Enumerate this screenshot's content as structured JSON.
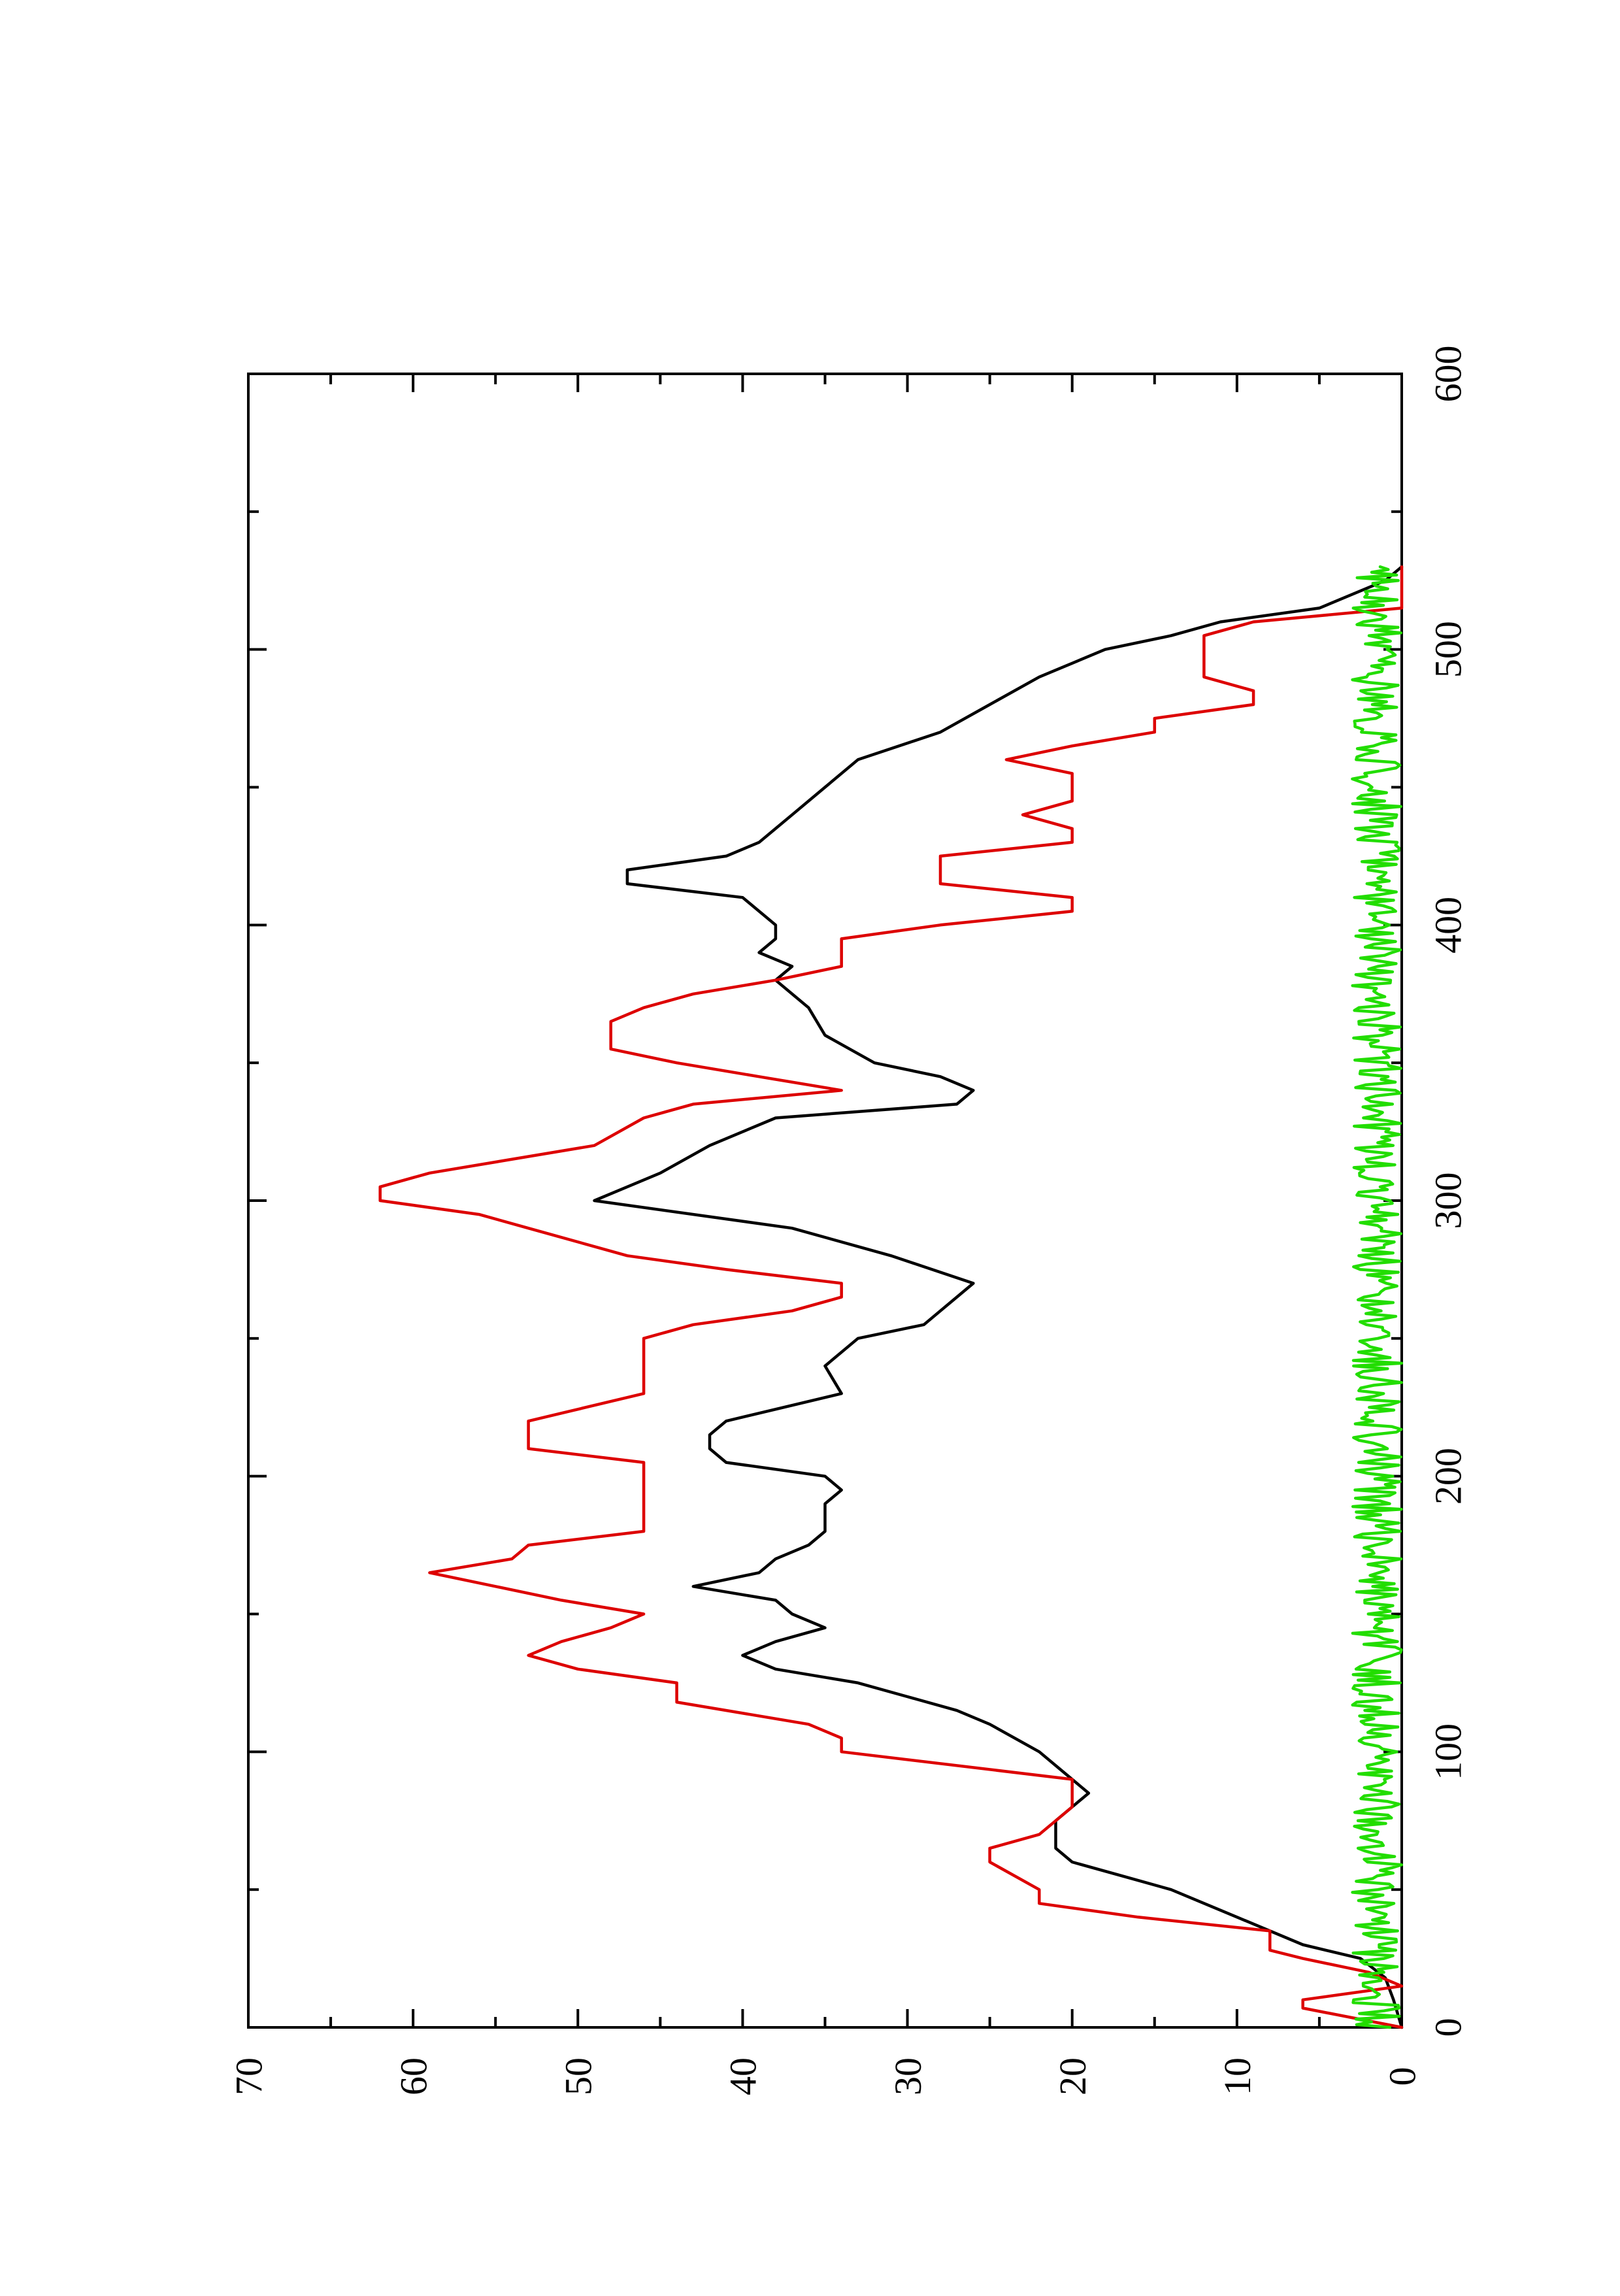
{
  "chart_data": {
    "type": "line",
    "orientation": "rotated-90",
    "title": "",
    "xlabel": "",
    "ylabel": "",
    "xlim": [
      0,
      600
    ],
    "ylim": [
      0,
      70
    ],
    "x_ticks": [
      0,
      100,
      200,
      300,
      400,
      500,
      600
    ],
    "y_ticks": [
      0,
      10,
      20,
      30,
      40,
      50,
      60,
      70
    ],
    "x_tick_labels": [
      "0",
      "100",
      "200",
      "300",
      "400",
      "500",
      "600"
    ],
    "y_tick_labels": [
      "0",
      "10",
      "20",
      "30",
      "40",
      "50",
      "60",
      "70"
    ],
    "grid": false,
    "series": [
      {
        "color": "#000000",
        "points": [
          [
            0,
            0
          ],
          [
            10,
            0.5
          ],
          [
            18,
            1
          ],
          [
            25,
            2.5
          ],
          [
            30,
            6
          ],
          [
            40,
            10
          ],
          [
            50,
            14
          ],
          [
            55,
            17
          ],
          [
            60,
            20
          ],
          [
            65,
            21
          ],
          [
            70,
            21
          ],
          [
            75,
            21
          ],
          [
            80,
            20
          ],
          [
            85,
            19
          ],
          [
            90,
            20
          ],
          [
            100,
            22
          ],
          [
            110,
            25
          ],
          [
            115,
            27
          ],
          [
            120,
            30
          ],
          [
            125,
            33
          ],
          [
            130,
            38
          ],
          [
            135,
            40
          ],
          [
            140,
            38
          ],
          [
            145,
            35
          ],
          [
            150,
            37
          ],
          [
            155,
            38
          ],
          [
            160,
            43
          ],
          [
            165,
            39
          ],
          [
            170,
            38
          ],
          [
            175,
            36
          ],
          [
            180,
            35
          ],
          [
            190,
            35
          ],
          [
            195,
            34
          ],
          [
            200,
            35
          ],
          [
            205,
            41
          ],
          [
            210,
            42
          ],
          [
            215,
            42
          ],
          [
            220,
            41
          ],
          [
            230,
            34
          ],
          [
            240,
            35
          ],
          [
            250,
            33
          ],
          [
            255,
            29
          ],
          [
            260,
            28
          ],
          [
            265,
            27
          ],
          [
            270,
            26
          ],
          [
            280,
            31
          ],
          [
            290,
            37
          ],
          [
            300,
            49
          ],
          [
            305,
            47
          ],
          [
            310,
            45
          ],
          [
            320,
            42
          ],
          [
            330,
            38
          ],
          [
            335,
            27
          ],
          [
            340,
            26
          ],
          [
            345,
            28
          ],
          [
            350,
            32
          ],
          [
            360,
            35
          ],
          [
            370,
            36
          ],
          [
            380,
            38
          ],
          [
            385,
            37
          ],
          [
            390,
            39
          ],
          [
            395,
            38
          ],
          [
            400,
            38
          ],
          [
            410,
            40
          ],
          [
            415,
            47
          ],
          [
            420,
            47
          ],
          [
            425,
            41
          ],
          [
            430,
            39
          ],
          [
            440,
            37
          ],
          [
            450,
            35
          ],
          [
            460,
            33
          ],
          [
            470,
            28
          ],
          [
            480,
            25
          ],
          [
            490,
            22
          ],
          [
            495,
            20
          ],
          [
            500,
            18
          ],
          [
            505,
            14
          ],
          [
            510,
            11
          ],
          [
            515,
            5
          ],
          [
            520,
            3
          ],
          [
            525,
            1
          ],
          [
            530,
            0
          ]
        ]
      },
      {
        "color": "#dd0000",
        "points": [
          [
            0,
            0
          ],
          [
            7,
            6
          ],
          [
            10,
            6
          ],
          [
            15,
            0
          ],
          [
            20,
            2
          ],
          [
            25,
            6
          ],
          [
            28,
            8
          ],
          [
            35,
            8
          ],
          [
            40,
            16
          ],
          [
            45,
            22
          ],
          [
            50,
            22
          ],
          [
            60,
            25
          ],
          [
            65,
            25
          ],
          [
            70,
            22
          ],
          [
            75,
            21
          ],
          [
            80,
            20
          ],
          [
            85,
            20
          ],
          [
            90,
            20
          ],
          [
            100,
            34
          ],
          [
            105,
            34
          ],
          [
            110,
            36
          ],
          [
            118,
            44
          ],
          [
            125,
            44
          ],
          [
            130,
            50
          ],
          [
            135,
            53
          ],
          [
            140,
            51
          ],
          [
            145,
            48
          ],
          [
            150,
            46
          ],
          [
            155,
            51
          ],
          [
            160,
            55
          ],
          [
            165,
            59
          ],
          [
            170,
            54
          ],
          [
            175,
            53
          ],
          [
            180,
            46
          ],
          [
            190,
            46
          ],
          [
            200,
            46
          ],
          [
            205,
            46
          ],
          [
            210,
            53
          ],
          [
            215,
            53
          ],
          [
            220,
            53
          ],
          [
            230,
            46
          ],
          [
            240,
            46
          ],
          [
            250,
            46
          ],
          [
            255,
            43
          ],
          [
            260,
            37
          ],
          [
            265,
            34
          ],
          [
            270,
            34
          ],
          [
            275,
            41
          ],
          [
            280,
            47
          ],
          [
            290,
            53
          ],
          [
            295,
            56
          ],
          [
            300,
            62
          ],
          [
            305,
            62
          ],
          [
            310,
            59
          ],
          [
            320,
            49
          ],
          [
            330,
            46
          ],
          [
            335,
            43
          ],
          [
            340,
            34
          ],
          [
            345,
            39
          ],
          [
            350,
            44
          ],
          [
            355,
            48
          ],
          [
            360,
            48
          ],
          [
            365,
            48
          ],
          [
            370,
            46
          ],
          [
            375,
            43
          ],
          [
            380,
            38
          ],
          [
            385,
            34
          ],
          [
            395,
            34
          ],
          [
            400,
            28
          ],
          [
            405,
            20
          ],
          [
            410,
            20
          ],
          [
            415,
            28
          ],
          [
            425,
            28
          ],
          [
            430,
            20
          ],
          [
            435,
            20
          ],
          [
            440,
            23
          ],
          [
            445,
            20
          ],
          [
            455,
            20
          ],
          [
            460,
            24
          ],
          [
            465,
            20
          ],
          [
            470,
            15
          ],
          [
            475,
            15
          ],
          [
            480,
            9
          ],
          [
            485,
            9
          ],
          [
            490,
            12
          ],
          [
            500,
            12
          ],
          [
            505,
            12
          ],
          [
            510,
            9
          ],
          [
            515,
            0
          ],
          [
            530,
            0
          ]
        ]
      },
      {
        "color": "#22dd00",
        "style": "noise",
        "x_start": 0,
        "x_end": 530,
        "y_min": 0,
        "y_max": 3,
        "seed": 7
      }
    ]
  }
}
